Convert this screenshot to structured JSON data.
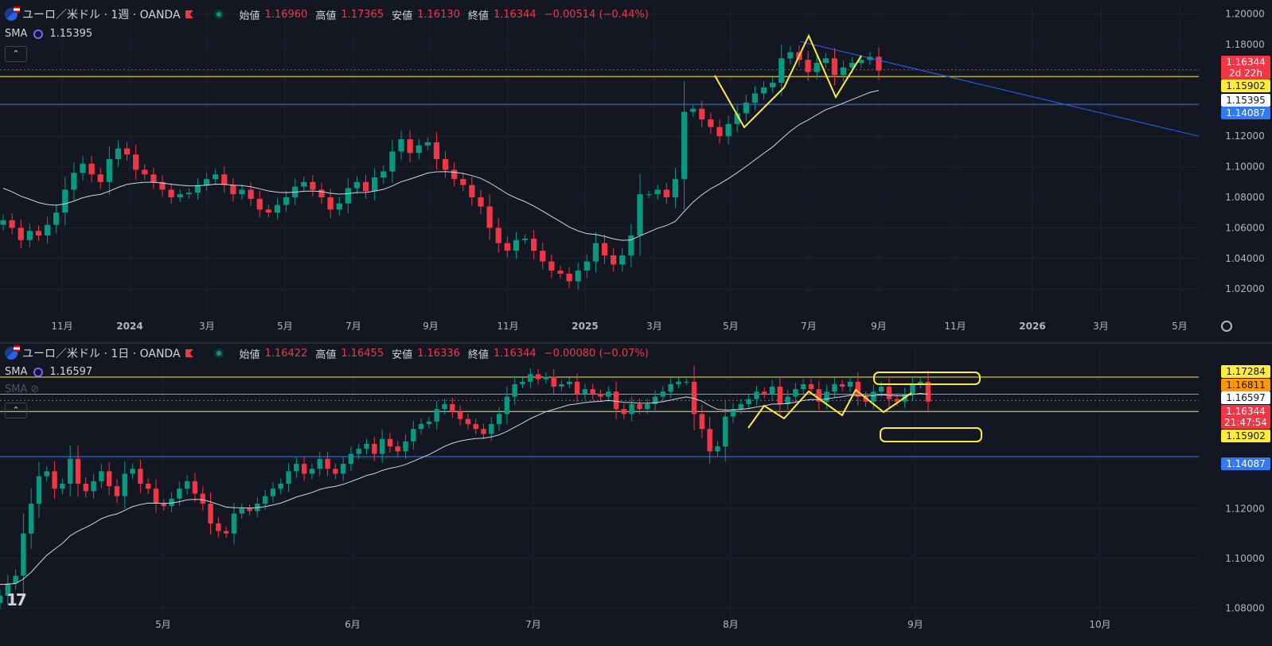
{
  "colors": {
    "up": "#089981",
    "down": "#f23645",
    "bg": "#131722",
    "grid": "#1e222d",
    "text": "#b2b5be",
    "sma": "#d1d4dc",
    "yellow": "#ffeb3b",
    "blue": "#2962ff",
    "lightblue": "#3179f5"
  },
  "weekly": {
    "title": "ユーロ／米ドル · 1週 · OANDA",
    "ohlc": {
      "o_label": "始値",
      "o": "1.16960",
      "h_label": "高値",
      "h": "1.17365",
      "l_label": "安値",
      "l": "1.16130",
      "c_label": "終値",
      "c": "1.16344",
      "chg": "−0.00514 (−0.44%)"
    },
    "sma": {
      "label": "SMA",
      "value": "1.15395"
    },
    "price_tags": [
      {
        "text": "1.16344",
        "bg": "#f23645",
        "fg": "#ffffff"
      },
      {
        "text": "2d 22h",
        "bg": "#f23645",
        "fg": "#ffffff"
      },
      {
        "text": "1.15902",
        "bg": "#ffeb3b",
        "fg": "#131722"
      },
      {
        "text": "1.15395",
        "bg": "#ffffff",
        "fg": "#131722"
      },
      {
        "text": "1.14087",
        "bg": "#3179f5",
        "fg": "#ffffff"
      }
    ],
    "x_labels": [
      "11月",
      "2024",
      "3月",
      "5月",
      "7月",
      "9月",
      "11月",
      "2025",
      "3月",
      "5月",
      "7月",
      "9月",
      "11月",
      "2026",
      "3月",
      "5月"
    ]
  },
  "daily": {
    "title": "ユーロ／米ドル · 1日 · OANDA",
    "ohlc": {
      "o_label": "始値",
      "o": "1.16422",
      "h_label": "高値",
      "h": "1.16455",
      "l_label": "安値",
      "l": "1.16336",
      "c_label": "終値",
      "c": "1.16344",
      "chg": "−0.00080 (−0.07%)"
    },
    "sma": {
      "label": "SMA",
      "value": "1.16597"
    },
    "sma2": {
      "label": "SMA"
    },
    "price_tags": [
      {
        "text": "1.17284",
        "bg": "#ffeb3b",
        "fg": "#131722"
      },
      {
        "text": "1.16811",
        "bg": "#ff9800",
        "fg": "#131722"
      },
      {
        "text": "1.16597",
        "bg": "#ffffff",
        "fg": "#131722"
      },
      {
        "text": "1.16344",
        "bg": "#f23645",
        "fg": "#ffffff"
      },
      {
        "text": "21:47:54",
        "bg": "#f23645",
        "fg": "#ffffff"
      },
      {
        "text": "1.15902",
        "bg": "#ffeb3b",
        "fg": "#131722"
      },
      {
        "text": "1.14087",
        "bg": "#3179f5",
        "fg": "#ffffff"
      }
    ],
    "x_labels": [
      "5月",
      "6月",
      "7月",
      "8月",
      "9月",
      "10月"
    ]
  },
  "chart_data": [
    {
      "type": "candlestick",
      "title": "ユーロ／米ドル · 1週 · OANDA",
      "ylim": [
        1.005,
        1.205
      ],
      "y_ticks": [
        1.02,
        1.04,
        1.06,
        1.08,
        1.1,
        1.12,
        1.14,
        1.16,
        1.18,
        1.2
      ],
      "y_tick_labels": [
        "1.02000",
        "1.04000",
        "1.06000",
        "1.08000",
        "1.10000",
        "1.12000",
        "",
        "",
        "1.18000",
        "1.20000"
      ],
      "horizontal_lines": [
        {
          "value": 1.15902,
          "color": "#ffeb3b"
        },
        {
          "value": 1.14087,
          "color": "#3179f5"
        },
        {
          "value": 1.16344,
          "color": "#f23645",
          "style": "dotted"
        }
      ],
      "closes": [
        1.065,
        1.06,
        1.052,
        1.058,
        1.055,
        1.062,
        1.07,
        1.085,
        1.096,
        1.102,
        1.095,
        1.09,
        1.105,
        1.112,
        1.108,
        1.098,
        1.095,
        1.09,
        1.085,
        1.08,
        1.082,
        1.083,
        1.088,
        1.092,
        1.095,
        1.088,
        1.082,
        1.085,
        1.079,
        1.072,
        1.07,
        1.075,
        1.08,
        1.087,
        1.09,
        1.085,
        1.08,
        1.072,
        1.076,
        1.086,
        1.09,
        1.084,
        1.093,
        1.097,
        1.11,
        1.118,
        1.109,
        1.114,
        1.116,
        1.105,
        1.098,
        1.092,
        1.088,
        1.08,
        1.074,
        1.06,
        1.05,
        1.045,
        1.052,
        1.053,
        1.045,
        1.038,
        1.032,
        1.03,
        1.025,
        1.032,
        1.038,
        1.05,
        1.042,
        1.036,
        1.042,
        1.055,
        1.082,
        1.082,
        1.085,
        1.08,
        1.092,
        1.136,
        1.138,
        1.131,
        1.126,
        1.12,
        1.128,
        1.135,
        1.142,
        1.148,
        1.152,
        1.155,
        1.171,
        1.175,
        1.17,
        1.162,
        1.168,
        1.171,
        1.16,
        1.165,
        1.168,
        1.17,
        1.172,
        1.163
      ],
      "sma_start": 1.088,
      "trend_line": {
        "from": [
          100,
          1.182
        ],
        "to": [
          198,
          1.12
        ],
        "color": "#2962ff"
      },
      "x_labels": [
        "11月",
        "2024",
        "3月",
        "5月",
        "7月",
        "9月",
        "11月",
        "2025",
        "3月",
        "5月",
        "7月",
        "9月",
        "11月",
        "2026",
        "3月",
        "5月"
      ]
    },
    {
      "type": "candlestick",
      "title": "ユーロ／米ドル · 1日 · OANDA",
      "ylim": [
        1.075,
        1.185
      ],
      "y_ticks": [
        1.08,
        1.1,
        1.12,
        1.14,
        1.16
      ],
      "y_tick_labels": [
        "1.08000",
        "1.10000",
        "1.12000",
        "",
        ""
      ],
      "horizontal_lines": [
        {
          "value": 1.17284,
          "color": "#ffeb3b"
        },
        {
          "value": 1.15902,
          "color": "#ffeb3b"
        },
        {
          "value": 1.16597,
          "color": "#9598a1"
        },
        {
          "value": 1.14087,
          "color": "#3179f5"
        },
        {
          "value": 1.16344,
          "color": "#f23645",
          "style": "dotted"
        }
      ],
      "closes": [
        1.085,
        1.09,
        1.093,
        1.11,
        1.122,
        1.133,
        1.135,
        1.128,
        1.13,
        1.14,
        1.13,
        1.127,
        1.131,
        1.135,
        1.129,
        1.125,
        1.134,
        1.136,
        1.13,
        1.128,
        1.122,
        1.121,
        1.124,
        1.128,
        1.131,
        1.126,
        1.122,
        1.114,
        1.111,
        1.11,
        1.118,
        1.12,
        1.119,
        1.122,
        1.125,
        1.128,
        1.13,
        1.135,
        1.138,
        1.134,
        1.136,
        1.14,
        1.136,
        1.134,
        1.138,
        1.142,
        1.144,
        1.146,
        1.142,
        1.148,
        1.145,
        1.143,
        1.147,
        1.152,
        1.154,
        1.155,
        1.16,
        1.162,
        1.159,
        1.156,
        1.154,
        1.152,
        1.15,
        1.154,
        1.158,
        1.165,
        1.17,
        1.171,
        1.174,
        1.172,
        1.173,
        1.169,
        1.17,
        1.171,
        1.166,
        1.168,
        1.166,
        1.165,
        1.167,
        1.16,
        1.158,
        1.162,
        1.16,
        1.162,
        1.165,
        1.167,
        1.17,
        1.171,
        1.171,
        1.158,
        1.152,
        1.143,
        1.145,
        1.157,
        1.16,
        1.162,
        1.164,
        1.167,
        1.166,
        1.169,
        1.162,
        1.165,
        1.168,
        1.17,
        1.168,
        1.163,
        1.167,
        1.17,
        1.169,
        1.171,
        1.165,
        1.163,
        1.167,
        1.169,
        1.164,
        1.163,
        1.166,
        1.17,
        1.171,
        1.163
      ],
      "sma_start": 1.09,
      "zigzag_note": "yellow hand-drawn lines",
      "x_labels": [
        "5月",
        "6月",
        "7月",
        "8月",
        "9月",
        "10月"
      ]
    }
  ]
}
